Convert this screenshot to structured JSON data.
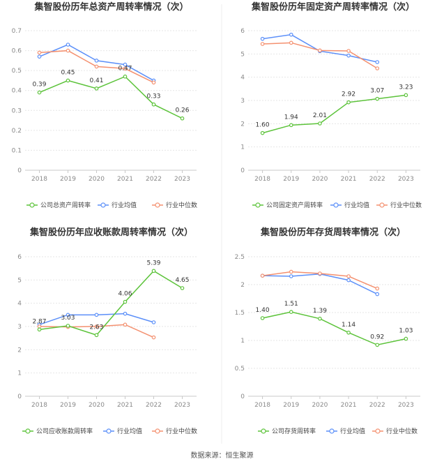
{
  "source": "数据来源：恒生聚源",
  "colors": {
    "company": "#5cc33a",
    "avg": "#5b8ff9",
    "median": "#f4906f",
    "axis": "#c8c8c8",
    "grid": "#e6e6e6"
  },
  "chart_data": [
    {
      "type": "line",
      "title": "集智股份历年总资产周转率情况（次）",
      "categories": [
        "2018",
        "2019",
        "2020",
        "2021",
        "2022",
        "2023"
      ],
      "ylim": [
        0,
        0.7
      ],
      "yticks": [
        "0",
        "0.1",
        "0.2",
        "0.3",
        "0.4",
        "0.5",
        "0.6",
        "0.7"
      ],
      "label_series": 0,
      "data_labels": [
        "0.39",
        "0.45",
        "0.41",
        "0.47",
        "0.33",
        "0.26"
      ],
      "series": [
        {
          "name": "公司总资产周转率",
          "values": [
            0.39,
            0.45,
            0.41,
            0.47,
            0.33,
            0.26
          ]
        },
        {
          "name": "行业均值",
          "values": [
            0.57,
            0.63,
            0.55,
            0.53,
            0.45,
            null
          ]
        },
        {
          "name": "行业中位数",
          "values": [
            0.59,
            0.6,
            0.52,
            0.51,
            0.44,
            null
          ]
        }
      ]
    },
    {
      "type": "line",
      "title": "集智股份历年固定资产周转率情况（次）",
      "categories": [
        "2018",
        "2019",
        "2020",
        "2021",
        "2022",
        "2023"
      ],
      "ylim": [
        0,
        6
      ],
      "yticks": [
        "0",
        "1",
        "2",
        "3",
        "4",
        "5",
        "6"
      ],
      "label_series": 0,
      "data_labels": [
        "1.60",
        "1.94",
        "2.01",
        "2.92",
        "3.07",
        "3.23"
      ],
      "series": [
        {
          "name": "公司固定资产周转率",
          "values": [
            1.6,
            1.94,
            2.01,
            2.92,
            3.07,
            3.23
          ]
        },
        {
          "name": "行业均值",
          "values": [
            5.65,
            5.83,
            5.12,
            4.93,
            4.65,
            null
          ]
        },
        {
          "name": "行业中位数",
          "values": [
            5.43,
            5.48,
            5.15,
            5.13,
            4.38,
            null
          ]
        }
      ]
    },
    {
      "type": "line",
      "title": "集智股份历年应收账款周转率情况（次）",
      "categories": [
        "2018",
        "2019",
        "2020",
        "2021",
        "2022",
        "2023"
      ],
      "ylim": [
        0,
        6
      ],
      "yticks": [
        "0",
        "1",
        "2",
        "3",
        "4",
        "5",
        "6"
      ],
      "label_series": 0,
      "data_labels": [
        "2.87",
        "3.03",
        "2.63",
        "4.06",
        "5.39",
        "4.65"
      ],
      "series": [
        {
          "name": "公司应收账款周转率",
          "values": [
            2.87,
            3.03,
            2.63,
            4.06,
            5.39,
            4.65
          ]
        },
        {
          "name": "行业均值",
          "values": [
            3.08,
            3.5,
            3.5,
            3.55,
            3.18,
            null
          ]
        },
        {
          "name": "行业中位数",
          "values": [
            3.0,
            2.98,
            3.0,
            3.08,
            2.53,
            null
          ]
        }
      ]
    },
    {
      "type": "line",
      "title": "集智股份历年存货周转率情况（次）",
      "categories": [
        "2018",
        "2019",
        "2020",
        "2021",
        "2022",
        "2023"
      ],
      "ylim": [
        0,
        2.5
      ],
      "yticks": [
        "0",
        "0.5",
        "1",
        "1.5",
        "2",
        "2.5"
      ],
      "label_series": 0,
      "data_labels": [
        "1.40",
        "1.51",
        "1.39",
        "1.14",
        "0.92",
        "1.03"
      ],
      "series": [
        {
          "name": "公司存货周转率",
          "values": [
            1.4,
            1.51,
            1.39,
            1.14,
            0.92,
            1.03
          ]
        },
        {
          "name": "行业均值",
          "values": [
            2.16,
            2.15,
            2.19,
            2.08,
            1.83,
            null
          ]
        },
        {
          "name": "行业中位数",
          "values": [
            2.16,
            2.23,
            2.2,
            2.15,
            1.93,
            null
          ]
        }
      ]
    }
  ]
}
